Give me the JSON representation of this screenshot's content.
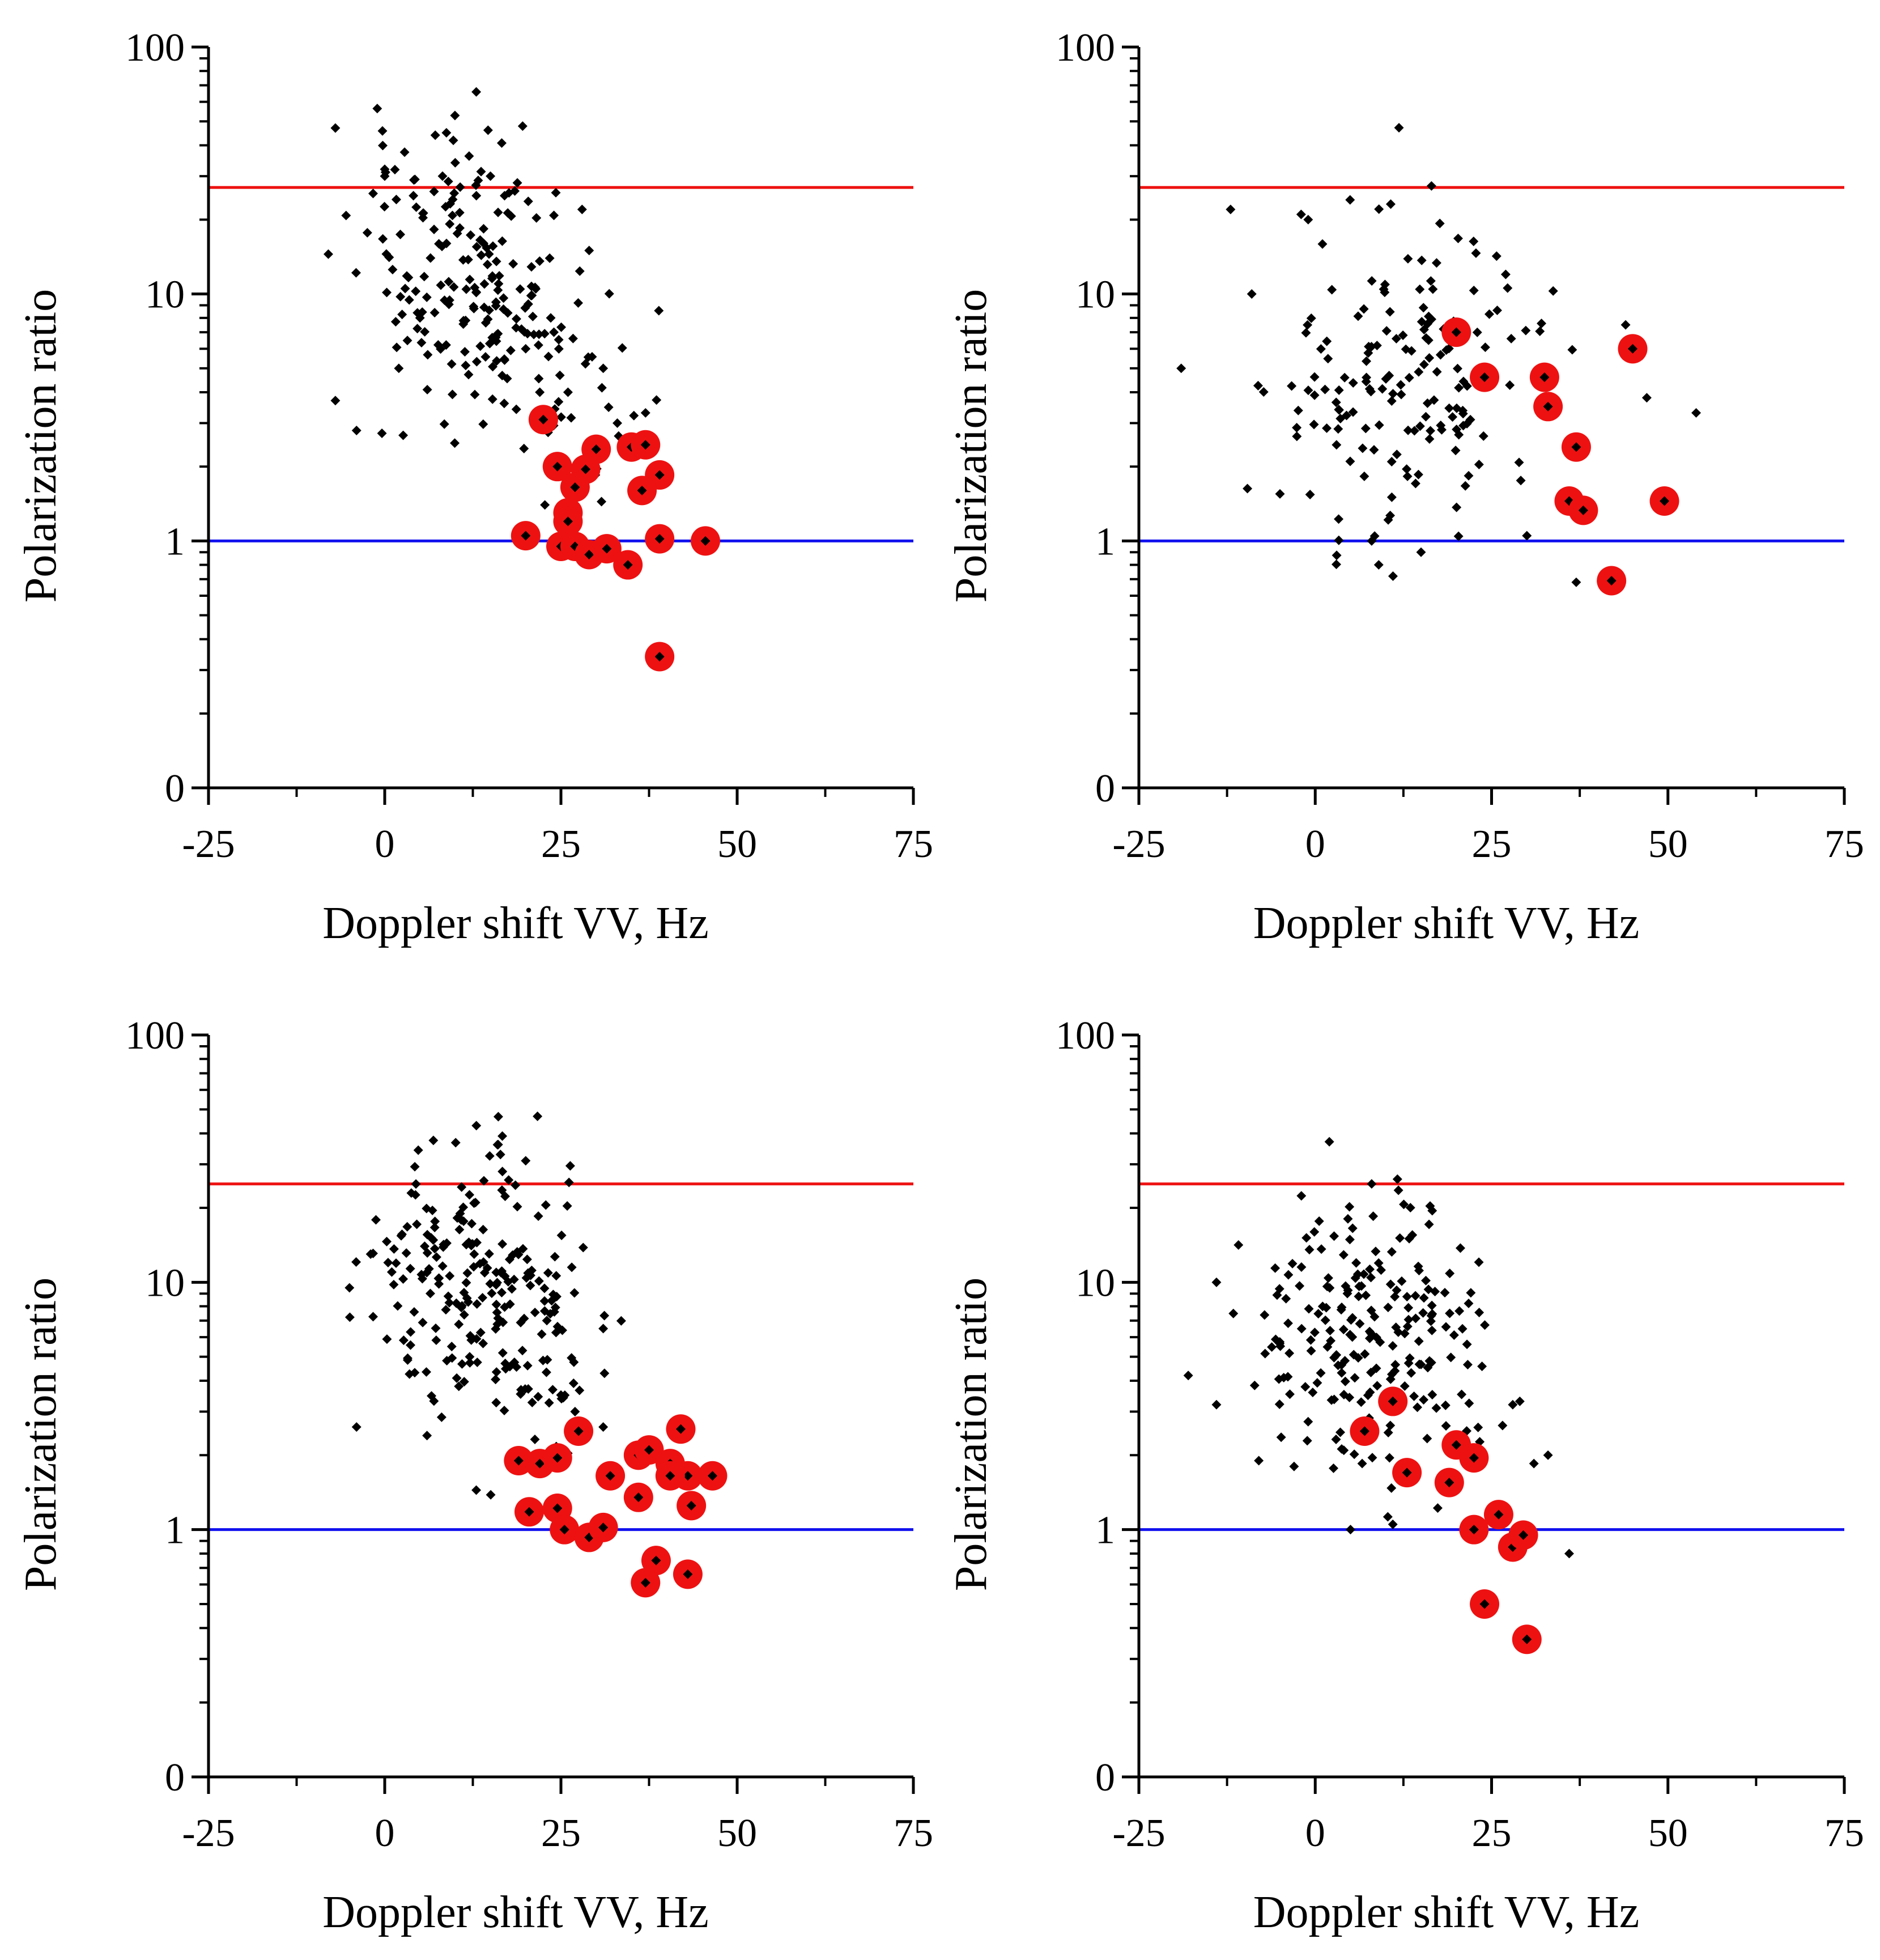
{
  "colors": {
    "upper_line": "#ee1111",
    "lower_line": "#1111ee",
    "highlight": "#ee1111",
    "points": "#000000",
    "axes": "#000000"
  },
  "chart_data": [
    {
      "id": "panel-1",
      "type": "scatter",
      "position": "top-left",
      "xlabel": "Doppler shift VV, Hz",
      "ylabel": "Polarization ratio",
      "xlim": [
        -25,
        75
      ],
      "xticks": [
        -25,
        0,
        25,
        50,
        75
      ],
      "xtick_labels": [
        "-25",
        "0",
        "25",
        "50",
        "75"
      ],
      "yscale": "log",
      "yticks": [
        0.1,
        1,
        10,
        100
      ],
      "ytick_labels": [
        "0",
        "1",
        "10",
        "100"
      ],
      "upper_threshold": 27,
      "lower_threshold": 1,
      "highlighted": [
        [
          22.5,
          3.1
        ],
        [
          24.5,
          2.0
        ],
        [
          28.5,
          1.95
        ],
        [
          30,
          2.35
        ],
        [
          35,
          2.4
        ],
        [
          37,
          2.45
        ],
        [
          39,
          1.85
        ],
        [
          36.5,
          1.6
        ],
        [
          27,
          1.65
        ],
        [
          26,
          1.3
        ],
        [
          26,
          1.2
        ],
        [
          20,
          1.05
        ],
        [
          25,
          0.95
        ],
        [
          27,
          0.95
        ],
        [
          29,
          0.88
        ],
        [
          31.5,
          0.93
        ],
        [
          34.5,
          0.8
        ],
        [
          39,
          1.02
        ],
        [
          45.5,
          1.0
        ],
        [
          39,
          0.34
        ]
      ],
      "background_count": 240,
      "background_seed": 11,
      "background_anchors": [
        [
          -8,
          14.5
        ],
        [
          -7,
          47
        ],
        [
          -7,
          3.7
        ],
        [
          -4,
          2.8
        ],
        [
          0,
          32
        ],
        [
          0,
          30
        ],
        [
          2,
          5
        ],
        [
          5,
          8
        ],
        [
          7,
          26
        ],
        [
          10,
          34
        ],
        [
          13,
          25
        ],
        [
          15,
          30
        ],
        [
          17,
          25
        ],
        [
          20,
          6
        ],
        [
          22,
          4
        ],
        [
          24,
          7
        ],
        [
          26,
          4
        ],
        [
          28,
          22
        ],
        [
          29,
          15
        ],
        [
          31,
          5
        ],
        [
          33,
          3
        ],
        [
          37,
          3.3
        ]
      ],
      "background_clusters": [
        {
          "cx": 11,
          "cy": 12,
          "sx": 7.0,
          "sy": 0.28,
          "n": 170
        },
        {
          "cx": 22,
          "cy": 4.5,
          "sx": 6.5,
          "sy": 0.25,
          "n": 48
        }
      ]
    },
    {
      "id": "panel-2",
      "type": "scatter",
      "position": "top-right",
      "xlabel": "Doppler shift VV, Hz",
      "ylabel": "Polarization ratio",
      "xlim": [
        -25,
        75
      ],
      "xticks": [
        -25,
        0,
        25,
        50,
        75
      ],
      "xtick_labels": [
        "-25",
        "0",
        "25",
        "50",
        "75"
      ],
      "yscale": "log",
      "yticks": [
        0.1,
        1,
        10,
        100
      ],
      "ytick_labels": [
        "0",
        "1",
        "10",
        "100"
      ],
      "upper_threshold": 27,
      "lower_threshold": 1,
      "highlighted": [
        [
          20,
          7.0
        ],
        [
          24,
          4.6
        ],
        [
          32.5,
          4.6
        ],
        [
          33,
          3.5
        ],
        [
          37,
          2.4
        ],
        [
          45,
          6.0
        ],
        [
          36,
          1.45
        ],
        [
          38,
          1.33
        ],
        [
          49.5,
          1.45
        ],
        [
          42,
          0.69
        ]
      ],
      "background_count": 180,
      "background_seed": 23,
      "background_anchors": [
        [
          -19,
          5
        ],
        [
          -12,
          22
        ],
        [
          -9,
          10
        ],
        [
          -5,
          1.55
        ],
        [
          -2,
          21
        ],
        [
          -1,
          20
        ],
        [
          8,
          1.0
        ],
        [
          9,
          0.8
        ],
        [
          15,
          0.9
        ],
        [
          27,
          12
        ],
        [
          30,
          1.05
        ],
        [
          37,
          0.68
        ],
        [
          44,
          7.5
        ],
        [
          47,
          3.8
        ],
        [
          54,
          3.3
        ]
      ],
      "background_clusters": [
        {
          "cx": 13,
          "cy": 4.5,
          "sx": 9.0,
          "sy": 0.34,
          "n": 165
        }
      ]
    },
    {
      "id": "panel-3",
      "type": "scatter",
      "position": "bottom-left",
      "xlabel": "Doppler shift VV, Hz",
      "ylabel": "Polarization ratio",
      "xlim": [
        -25,
        75
      ],
      "xticks": [
        -25,
        0,
        25,
        50,
        75
      ],
      "xtick_labels": [
        "-25",
        "0",
        "25",
        "50",
        "75"
      ],
      "yscale": "log",
      "yticks": [
        0.1,
        1,
        10,
        100
      ],
      "ytick_labels": [
        "0",
        "1",
        "10",
        "100"
      ],
      "upper_threshold": 25,
      "lower_threshold": 1,
      "highlighted": [
        [
          19,
          1.9
        ],
        [
          22,
          1.85
        ],
        [
          24.5,
          1.95
        ],
        [
          27.5,
          2.5
        ],
        [
          32,
          1.65
        ],
        [
          36,
          2.0
        ],
        [
          37.5,
          2.1
        ],
        [
          40.5,
          1.85
        ],
        [
          42,
          2.55
        ],
        [
          43,
          1.65
        ],
        [
          46.5,
          1.65
        ],
        [
          40.5,
          1.65
        ],
        [
          36,
          1.35
        ],
        [
          43.5,
          1.25
        ],
        [
          20.5,
          1.18
        ],
        [
          24.5,
          1.22
        ],
        [
          25.5,
          1.0
        ],
        [
          29,
          0.93
        ],
        [
          31,
          1.02
        ],
        [
          38.5,
          0.75
        ],
        [
          37,
          0.61
        ],
        [
          43,
          0.66
        ]
      ],
      "background_count": 250,
      "background_seed": 37,
      "background_anchors": [
        [
          -5,
          9.5
        ],
        [
          -4,
          2.6
        ],
        [
          -2,
          13
        ],
        [
          1,
          11
        ],
        [
          6,
          2.4
        ],
        [
          13,
          43
        ],
        [
          16,
          36
        ],
        [
          20,
          31
        ],
        [
          23,
          7
        ],
        [
          25,
          3.5
        ],
        [
          27,
          3
        ],
        [
          31,
          6.5
        ],
        [
          31,
          2.6
        ]
      ],
      "background_clusters": [
        {
          "cx": 13,
          "cy": 11,
          "sx": 6.5,
          "sy": 0.27,
          "n": 200
        },
        {
          "cx": 22,
          "cy": 4,
          "sx": 5.0,
          "sy": 0.22,
          "n": 35
        }
      ]
    },
    {
      "id": "panel-4",
      "type": "scatter",
      "position": "bottom-right",
      "xlabel": "Doppler shift VV, Hz",
      "ylabel": "Polarization ratio",
      "xlim": [
        -25,
        75
      ],
      "xticks": [
        -25,
        0,
        25,
        50,
        75
      ],
      "xtick_labels": [
        "-25",
        "0",
        "25",
        "50",
        "75"
      ],
      "yscale": "log",
      "yticks": [
        0.1,
        1,
        10,
        100
      ],
      "ytick_labels": [
        "0",
        "1",
        "10",
        "100"
      ],
      "upper_threshold": 25,
      "lower_threshold": 1,
      "highlighted": [
        [
          7,
          2.5
        ],
        [
          11,
          3.3
        ],
        [
          13,
          1.7
        ],
        [
          19,
          1.55
        ],
        [
          20,
          2.2
        ],
        [
          22.5,
          1.95
        ],
        [
          26,
          1.15
        ],
        [
          22.5,
          1.0
        ],
        [
          28,
          0.85
        ],
        [
          29.5,
          0.95
        ],
        [
          24,
          0.5
        ],
        [
          30,
          0.36
        ]
      ],
      "background_count": 230,
      "background_seed": 53,
      "background_anchors": [
        [
          -18,
          4.2
        ],
        [
          -14,
          3.2
        ],
        [
          -14,
          10
        ],
        [
          -8,
          1.9
        ],
        [
          -3,
          1.8
        ],
        [
          2,
          37
        ],
        [
          8,
          25
        ],
        [
          5,
          1.0
        ],
        [
          11,
          1.05
        ],
        [
          28,
          3.2
        ],
        [
          29,
          3.3
        ],
        [
          31,
          1.85
        ],
        [
          33,
          2.0
        ],
        [
          36,
          0.8
        ]
      ],
      "background_clusters": [
        {
          "cx": 7,
          "cy": 7,
          "sx": 8.0,
          "sy": 0.25,
          "n": 190
        },
        {
          "cx": 17,
          "cy": 3.8,
          "sx": 6.0,
          "sy": 0.22,
          "n": 25
        }
      ]
    }
  ]
}
